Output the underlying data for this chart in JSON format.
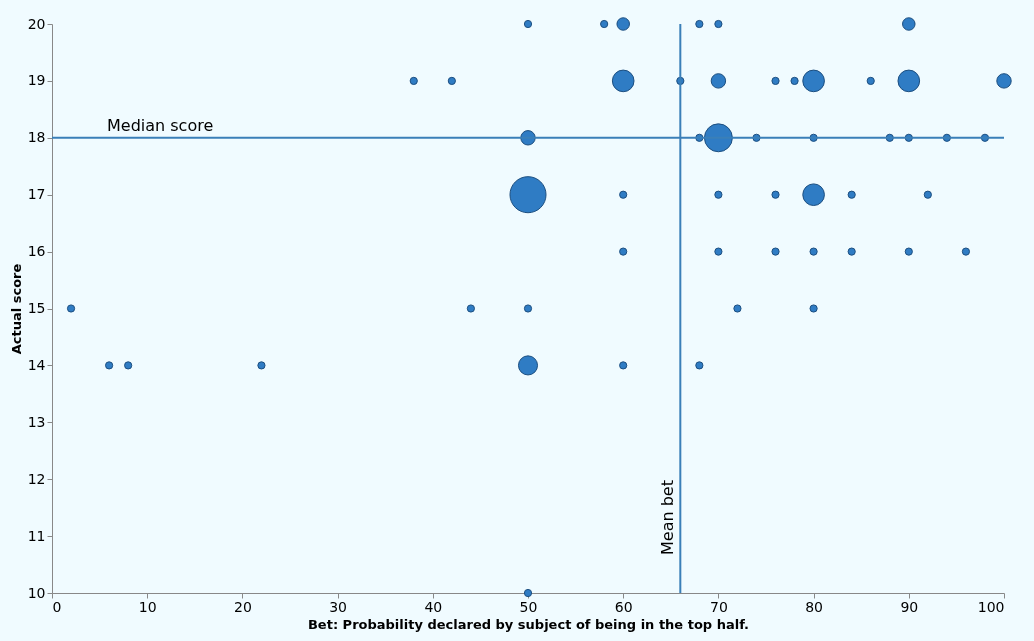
{
  "chart_data": {
    "type": "bubble",
    "xlabel": "Bet: Probability declared by subject of being in the top half.",
    "ylabel": "Actual score",
    "series": [
      {
        "color": "#2f7cc4",
        "x": [
          50,
          58,
          60,
          68,
          70,
          90,
          38,
          42,
          60,
          66,
          70,
          76,
          78,
          80,
          86,
          90,
          100,
          50,
          68,
          70,
          74,
          80,
          88,
          90,
          94,
          98,
          50,
          60,
          70,
          76,
          80,
          84,
          92,
          60,
          70,
          76,
          80,
          84,
          90,
          96,
          2,
          44,
          50,
          72,
          80,
          6,
          8,
          22,
          50,
          60,
          68,
          50
        ],
        "values": [
          20,
          20,
          20,
          20,
          20,
          20,
          19,
          19,
          19,
          19,
          19,
          19,
          19,
          19,
          19,
          19,
          19,
          18,
          18,
          18,
          18,
          18,
          18,
          18,
          18,
          18,
          17,
          17,
          17,
          17,
          17,
          17,
          17,
          16,
          16,
          16,
          16,
          16,
          16,
          16,
          15,
          15,
          15,
          15,
          15,
          14,
          14,
          14,
          14,
          14,
          14,
          10
        ],
        "sizes": [
          0.04,
          0.04,
          0.12,
          0.04,
          0.04,
          0.12,
          0.04,
          0.04,
          0.36,
          0.04,
          0.16,
          0.04,
          0.04,
          0.36,
          0.04,
          0.36,
          0.16,
          0.16,
          0.04,
          0.6,
          0.04,
          0.04,
          0.04,
          0.04,
          0.04,
          0.04,
          1,
          0.04,
          0.04,
          0.04,
          0.36,
          0.04,
          0.04,
          0.04,
          0.04,
          0.04,
          0.04,
          0.04,
          0.04,
          0.04,
          0.04,
          0.04,
          0.04,
          0.04,
          0.04,
          0.04,
          0.04,
          0.04,
          0.28,
          0.04,
          0.04,
          0.04
        ]
      }
    ],
    "xlim": [
      0,
      100
    ],
    "xticks": [
      0,
      10,
      20,
      30,
      40,
      50,
      60,
      70,
      80,
      90,
      100
    ],
    "ylim": [
      10,
      20
    ],
    "yticks": [
      10,
      11,
      12,
      13,
      14,
      15,
      16,
      17,
      18,
      19,
      20
    ],
    "ref_lines": [
      {
        "axis": "y",
        "value": 18,
        "label": "Median score",
        "color": "#3a7fb8"
      },
      {
        "axis": "x",
        "value": 66,
        "label": "Mean bet",
        "color": "#3a7fb8"
      }
    ],
    "grid": false
  }
}
